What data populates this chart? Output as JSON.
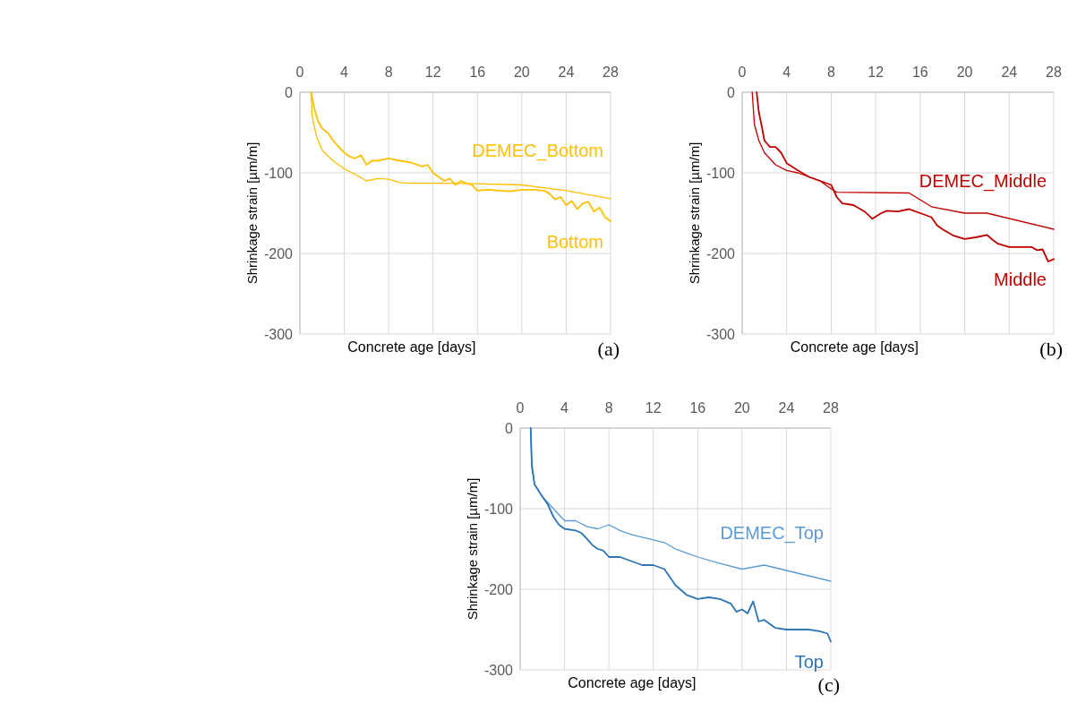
{
  "chart_data": [
    {
      "type": "line",
      "xlabel": "Concrete age [days]",
      "ylabel": "Shrinkage strain [µm/m]",
      "xlim": [
        0,
        28
      ],
      "xticks": [
        0,
        4,
        8,
        12,
        16,
        20,
        24,
        28
      ],
      "ylim": [
        -300,
        0
      ],
      "yticks": [
        -300,
        -200,
        -100,
        0
      ],
      "grid": true,
      "annotations": [
        "(a)"
      ],
      "series": [
        {
          "name": "DEMEC_Bottom",
          "color": "#ffc000",
          "x": [
            1,
            1.1,
            1.5,
            2,
            3,
            4,
            5,
            6,
            7,
            8,
            9,
            10,
            14,
            20,
            24,
            28
          ],
          "values": [
            0,
            -30,
            -55,
            -72,
            -85,
            -95,
            -102,
            -110,
            -107,
            -108,
            -112,
            -113,
            -113,
            -115,
            -122,
            -132
          ]
        },
        {
          "name": "Bottom",
          "color": "#ffc000",
          "x": [
            1,
            1.3,
            1.6,
            2,
            2.5,
            3,
            3.5,
            4,
            4.5,
            5,
            5.5,
            6,
            6.5,
            7,
            8,
            9,
            10,
            11,
            11.5,
            12,
            12.5,
            13,
            13.5,
            14,
            14.5,
            15,
            15.5,
            16,
            17,
            18,
            19,
            20,
            21,
            22,
            22.5,
            23,
            23.5,
            24,
            24.5,
            25,
            25.5,
            26,
            26.5,
            27,
            27.5,
            28
          ],
          "values": [
            0,
            -20,
            -35,
            -45,
            -50,
            -60,
            -68,
            -75,
            -80,
            -82,
            -78,
            -90,
            -85,
            -85,
            -82,
            -85,
            -87,
            -92,
            -90,
            -100,
            -105,
            -110,
            -107,
            -115,
            -110,
            -113,
            -115,
            -122,
            -121,
            -122,
            -123,
            -121,
            -121,
            -122,
            -126,
            -133,
            -130,
            -140,
            -135,
            -145,
            -138,
            -136,
            -148,
            -143,
            -155,
            -160
          ]
        }
      ]
    },
    {
      "type": "line",
      "xlabel": "Concrete age [days]",
      "ylabel": "Shrinkage strain [µm/m]",
      "xlim": [
        0,
        28
      ],
      "xticks": [
        0,
        4,
        8,
        12,
        16,
        20,
        24,
        28
      ],
      "ylim": [
        -300,
        0
      ],
      "yticks": [
        -300,
        -200,
        -100,
        0
      ],
      "grid": true,
      "annotations": [
        "(b)"
      ],
      "series": [
        {
          "name": "DEMEC_Middle",
          "color": "#c00000",
          "x": [
            0.9,
            1.1,
            1.5,
            2,
            3,
            4,
            5,
            6,
            7,
            8,
            8.5,
            15,
            17,
            20,
            22,
            28
          ],
          "values": [
            0,
            -40,
            -60,
            -75,
            -90,
            -97,
            -100,
            -105,
            -110,
            -120,
            -124,
            -125,
            -142,
            -150,
            -150,
            -170
          ]
        },
        {
          "name": "Middle",
          "color": "#c00000",
          "x": [
            1.3,
            1.5,
            1.8,
            2,
            2.5,
            3,
            3.5,
            4,
            5,
            6,
            7,
            8,
            8.5,
            9,
            10,
            11,
            11.7,
            12.5,
            13,
            14,
            15,
            16,
            17,
            17.5,
            18,
            19,
            20,
            21,
            22,
            22.5,
            23,
            24,
            25,
            26,
            26.5,
            27,
            27.5,
            28
          ],
          "values": [
            0,
            -25,
            -45,
            -60,
            -68,
            -68,
            -75,
            -88,
            -97,
            -105,
            -110,
            -115,
            -130,
            -138,
            -140,
            -148,
            -157,
            -150,
            -147,
            -148,
            -145,
            -150,
            -155,
            -165,
            -170,
            -178,
            -182,
            -180,
            -177,
            -183,
            -188,
            -192,
            -192,
            -192,
            -196,
            -195,
            -210,
            -207
          ]
        }
      ]
    },
    {
      "type": "line",
      "xlabel": "Concrete age [days]",
      "ylabel": "Shrinkage strain [µm/m]",
      "xlim": [
        0,
        28
      ],
      "xticks": [
        0,
        4,
        8,
        12,
        16,
        20,
        24,
        28
      ],
      "ylim": [
        -300,
        0
      ],
      "yticks": [
        -300,
        -200,
        -100,
        0
      ],
      "grid": true,
      "annotations": [
        "(c)"
      ],
      "series": [
        {
          "name": "DEMEC_Top",
          "color": "#5b9bd5",
          "x": [
            0.95,
            1.05,
            1.3,
            2,
            3,
            4,
            5,
            6,
            7,
            8,
            9,
            10,
            13,
            14,
            16,
            18,
            20,
            22,
            28
          ],
          "values": [
            0,
            -50,
            -70,
            -85,
            -100,
            -115,
            -115,
            -122,
            -125,
            -120,
            -127,
            -132,
            -142,
            -150,
            -160,
            -168,
            -175,
            -170,
            -190
          ]
        },
        {
          "name": "Top",
          "color": "#2e75b6",
          "x": [
            0.95,
            1.05,
            1.3,
            2,
            2.5,
            3,
            3.5,
            4,
            5,
            5.5,
            6,
            6.5,
            7,
            7.5,
            8,
            9,
            10,
            11,
            12,
            13,
            13.5,
            14,
            15,
            16,
            17,
            18,
            19,
            19.5,
            20,
            20.5,
            21,
            21.5,
            22,
            23,
            24,
            25,
            26,
            27,
            27.7,
            28
          ],
          "values": [
            0,
            -45,
            -70,
            -85,
            -95,
            -110,
            -120,
            -125,
            -127,
            -130,
            -137,
            -145,
            -150,
            -152,
            -160,
            -160,
            -165,
            -170,
            -170,
            -175,
            -185,
            -195,
            -207,
            -212,
            -210,
            -212,
            -218,
            -228,
            -225,
            -230,
            -215,
            -240,
            -238,
            -248,
            -250,
            -250,
            -250,
            -252,
            -255,
            -265
          ]
        }
      ]
    }
  ]
}
